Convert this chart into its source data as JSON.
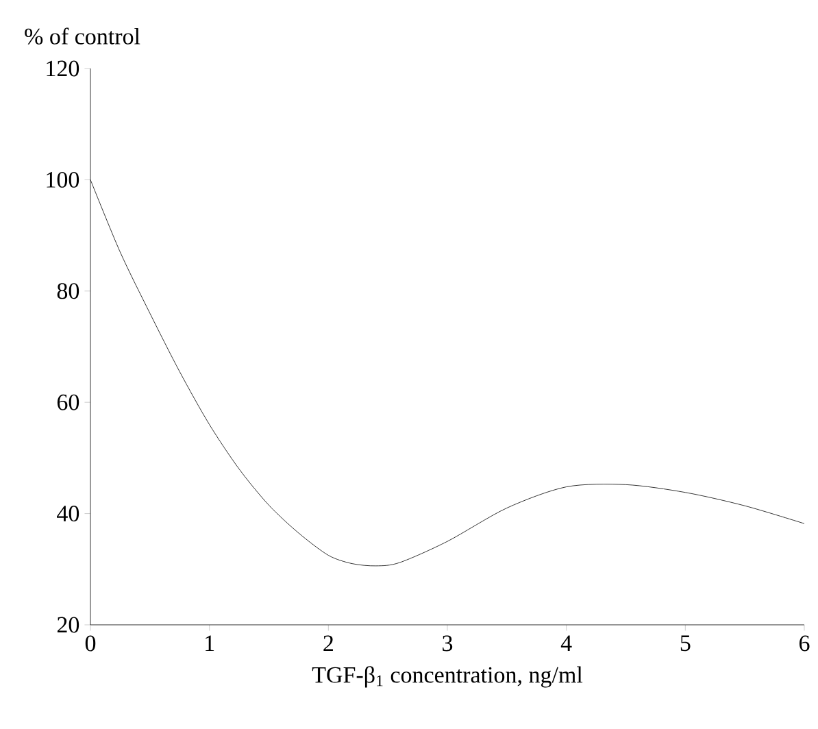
{
  "chart_data": {
    "type": "line",
    "xlabel": "TGF-β$_{1}$ concentration, ng/ml",
    "ylabel": "% of control",
    "x": [
      0,
      0.25,
      0.5,
      0.75,
      1,
      1.25,
      1.5,
      1.75,
      2,
      2.2,
      2.4,
      2.6,
      3,
      3.5,
      4,
      4.5,
      5,
      5.5,
      6
    ],
    "series": [
      {
        "color": "#000000",
        "values": [
          100,
          87,
          76,
          65.5,
          56,
          48,
          41.5,
          36.5,
          32.5,
          31,
          30.6,
          31.2,
          35,
          41,
          44.8,
          45.2,
          43.8,
          41.4,
          38.2
        ]
      }
    ],
    "xlim": [
      0,
      6
    ],
    "ylim": [
      20,
      120
    ],
    "xticks": [
      0,
      1,
      2,
      3,
      4,
      5,
      6
    ],
    "yticks": [
      20,
      40,
      60,
      80,
      100,
      120
    ],
    "grid": false,
    "marker": "none",
    "line_style": "solid"
  }
}
